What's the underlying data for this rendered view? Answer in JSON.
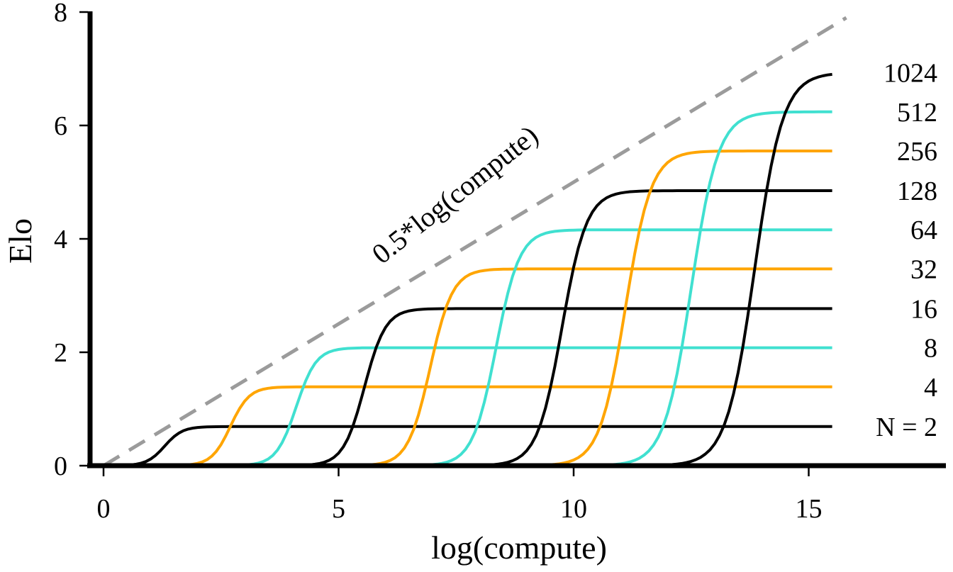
{
  "chart_data": {
    "type": "line",
    "xlabel": "log(compute)",
    "ylabel": "Elo",
    "xlim": [
      -0.3,
      18
    ],
    "ylim": [
      0,
      8
    ],
    "xticks": [
      "0",
      "5",
      "10",
      "15"
    ],
    "yticks": [
      "0",
      "2",
      "4",
      "6",
      "8"
    ],
    "grid": false,
    "legend": "none",
    "reference_line": {
      "label": "0.5*log(compute)",
      "slope": 0.5,
      "x": [
        0,
        15.8
      ],
      "color": "#9b9b9b",
      "style": "dashed"
    },
    "series": [
      {
        "label": "N = 2",
        "color": "#000000",
        "plateau": 0.69,
        "mid": 1.3,
        "width": 0.75
      },
      {
        "label": "4",
        "color": "#ffa500",
        "plateau": 1.39,
        "mid": 2.7,
        "width": 0.8
      },
      {
        "label": "8",
        "color": "#40e0d0",
        "plateau": 2.08,
        "mid": 4.1,
        "width": 0.85
      },
      {
        "label": "16",
        "color": "#000000",
        "plateau": 2.77,
        "mid": 5.55,
        "width": 0.9
      },
      {
        "label": "32",
        "color": "#ffa500",
        "plateau": 3.47,
        "mid": 6.95,
        "width": 0.95
      },
      {
        "label": "64",
        "color": "#40e0d0",
        "plateau": 4.16,
        "mid": 8.35,
        "width": 1.0
      },
      {
        "label": "128",
        "color": "#000000",
        "plateau": 4.85,
        "mid": 9.75,
        "width": 1.05
      },
      {
        "label": "256",
        "color": "#ffa500",
        "plateau": 5.55,
        "mid": 11.1,
        "width": 1.1
      },
      {
        "label": "512",
        "color": "#40e0d0",
        "plateau": 6.24,
        "mid": 12.5,
        "width": 1.15
      },
      {
        "label": "1024",
        "color": "#000000",
        "plateau": 6.93,
        "mid": 13.85,
        "width": 1.2
      }
    ],
    "x_end": 15.5
  }
}
